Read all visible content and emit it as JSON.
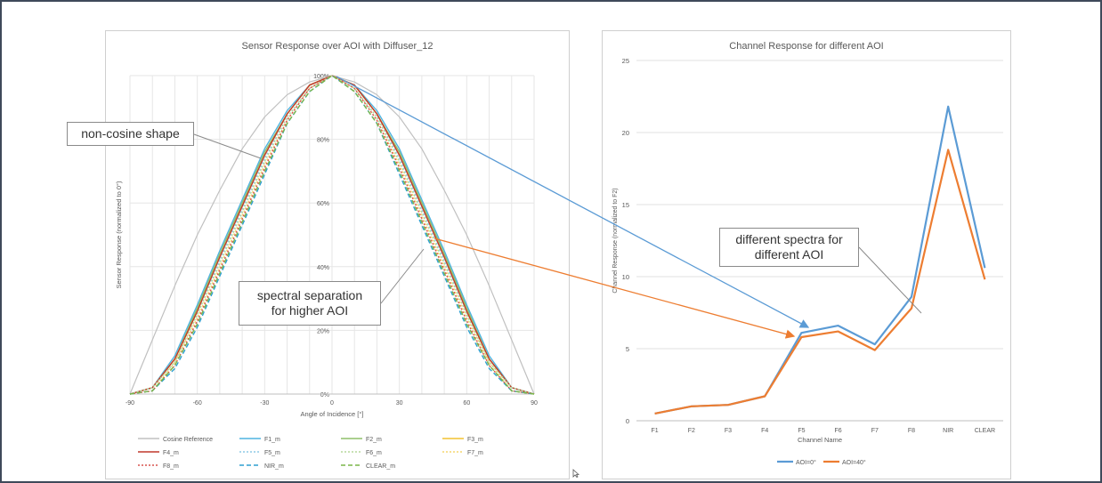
{
  "left_chart": {
    "title": "Sensor Response over AOI with Diffuser_12",
    "xlabel": "Angle of Incidence [°]",
    "ylabel": "Sensor Response (normalized to 0°)",
    "x_ticks": [
      "-90",
      "-60",
      "-30",
      "0",
      "30",
      "60",
      "90"
    ],
    "y_ticks": [
      "0%",
      "20%",
      "40%",
      "60%",
      "80%",
      "100%"
    ],
    "legend": [
      {
        "label": "Cosine Reference",
        "color": "#c0c0c0",
        "dash": "solid"
      },
      {
        "label": "F1_m",
        "color": "#4fb3e0",
        "dash": "solid"
      },
      {
        "label": "F2_m",
        "color": "#8fbf6a",
        "dash": "solid"
      },
      {
        "label": "F3_m",
        "color": "#f2c230",
        "dash": "solid"
      },
      {
        "label": "F4_m",
        "color": "#c0392b",
        "dash": "solid"
      },
      {
        "label": "F5_m",
        "color": "#8ecae6",
        "dash": "dotted"
      },
      {
        "label": "F6_m",
        "color": "#b5d99c",
        "dash": "dotted"
      },
      {
        "label": "F7_m",
        "color": "#f5d76e",
        "dash": "dotted"
      },
      {
        "label": "F8_m",
        "color": "#d9534f",
        "dash": "dotted"
      },
      {
        "label": "NIR_m",
        "color": "#2e9fd0",
        "dash": "dashed"
      },
      {
        "label": "CLEAR_m",
        "color": "#7ab648",
        "dash": "dashed"
      }
    ]
  },
  "right_chart": {
    "title": "Channel Response for different AOI",
    "xlabel": "Channel Name",
    "ylabel": "Channel Response (normalized to F2)",
    "y_ticks": [
      "0",
      "5",
      "10",
      "15",
      "20",
      "25"
    ],
    "legend": [
      {
        "label": "AOI=0°",
        "color": "#5b9bd5"
      },
      {
        "label": "AOI=40°",
        "color": "#ed7d31"
      }
    ]
  },
  "chart_data": [
    {
      "type": "line",
      "title": "Sensor Response over AOI with Diffuser_12",
      "xlabel": "Angle of Incidence [°]",
      "ylabel": "Sensor Response (normalized to 0°)",
      "xlim": [
        -90,
        90
      ],
      "ylim": [
        0,
        1
      ],
      "grid": true,
      "legend_position": "bottom",
      "x": [
        -90,
        -80,
        -70,
        -60,
        -50,
        -40,
        -30,
        -20,
        -10,
        0,
        10,
        20,
        30,
        40,
        50,
        60,
        70,
        80,
        90
      ],
      "series": [
        {
          "name": "Cosine Reference",
          "values": [
            0.0,
            0.17,
            0.34,
            0.5,
            0.64,
            0.77,
            0.87,
            0.94,
            0.98,
            1.0,
            0.98,
            0.94,
            0.87,
            0.77,
            0.64,
            0.5,
            0.34,
            0.17,
            0.0
          ]
        },
        {
          "name": "F1_m",
          "values": [
            0.0,
            0.02,
            0.12,
            0.28,
            0.45,
            0.61,
            0.77,
            0.89,
            0.97,
            1.0,
            0.97,
            0.89,
            0.77,
            0.61,
            0.45,
            0.28,
            0.12,
            0.02,
            0.0
          ]
        },
        {
          "name": "F2_m",
          "values": [
            0.0,
            0.02,
            0.11,
            0.27,
            0.44,
            0.6,
            0.76,
            0.88,
            0.97,
            1.0,
            0.97,
            0.88,
            0.76,
            0.6,
            0.44,
            0.27,
            0.11,
            0.02,
            0.0
          ]
        },
        {
          "name": "F3_m",
          "values": [
            0.0,
            0.02,
            0.11,
            0.26,
            0.43,
            0.59,
            0.75,
            0.88,
            0.97,
            1.0,
            0.97,
            0.88,
            0.75,
            0.59,
            0.43,
            0.26,
            0.11,
            0.02,
            0.0
          ]
        },
        {
          "name": "F4_m",
          "values": [
            0.0,
            0.02,
            0.11,
            0.26,
            0.43,
            0.59,
            0.75,
            0.88,
            0.97,
            1.0,
            0.97,
            0.88,
            0.75,
            0.59,
            0.43,
            0.26,
            0.11,
            0.02,
            0.0
          ]
        },
        {
          "name": "F5_m",
          "values": [
            0.0,
            0.02,
            0.1,
            0.25,
            0.42,
            0.58,
            0.74,
            0.87,
            0.96,
            1.0,
            0.96,
            0.87,
            0.74,
            0.58,
            0.42,
            0.25,
            0.1,
            0.02,
            0.0
          ]
        },
        {
          "name": "F6_m",
          "values": [
            0.0,
            0.02,
            0.1,
            0.25,
            0.41,
            0.57,
            0.73,
            0.87,
            0.96,
            1.0,
            0.96,
            0.87,
            0.73,
            0.57,
            0.41,
            0.25,
            0.1,
            0.02,
            0.0
          ]
        },
        {
          "name": "F7_m",
          "values": [
            0.0,
            0.01,
            0.1,
            0.24,
            0.4,
            0.56,
            0.72,
            0.86,
            0.96,
            1.0,
            0.96,
            0.86,
            0.72,
            0.56,
            0.4,
            0.24,
            0.1,
            0.01,
            0.0
          ]
        },
        {
          "name": "F8_m",
          "values": [
            0.0,
            0.01,
            0.09,
            0.23,
            0.39,
            0.55,
            0.71,
            0.86,
            0.96,
            1.0,
            0.96,
            0.86,
            0.71,
            0.55,
            0.39,
            0.23,
            0.09,
            0.01,
            0.0
          ]
        },
        {
          "name": "NIR_m",
          "values": [
            0.0,
            0.01,
            0.08,
            0.21,
            0.37,
            0.53,
            0.69,
            0.85,
            0.95,
            1.0,
            0.95,
            0.85,
            0.69,
            0.53,
            0.37,
            0.21,
            0.08,
            0.01,
            0.0
          ]
        },
        {
          "name": "CLEAR_m",
          "values": [
            0.0,
            0.01,
            0.09,
            0.22,
            0.38,
            0.54,
            0.7,
            0.85,
            0.95,
            1.0,
            0.95,
            0.85,
            0.7,
            0.54,
            0.38,
            0.22,
            0.09,
            0.01,
            0.0
          ]
        }
      ]
    },
    {
      "type": "line",
      "title": "Channel Response for different AOI",
      "xlabel": "Channel Name",
      "ylabel": "Channel Response (normalized to F2)",
      "ylim": [
        0,
        25
      ],
      "grid": true,
      "legend_position": "bottom",
      "categories": [
        "F1",
        "F2",
        "F3",
        "F4",
        "F5",
        "F6",
        "F7",
        "F8",
        "NIR",
        "CLEAR"
      ],
      "series": [
        {
          "name": "AOI=0°",
          "values": [
            0.5,
            1.0,
            1.1,
            1.7,
            6.1,
            6.6,
            5.3,
            8.6,
            21.8,
            10.6
          ]
        },
        {
          "name": "AOI=40°",
          "values": [
            0.5,
            1.0,
            1.1,
            1.7,
            5.8,
            6.2,
            4.9,
            7.8,
            18.8,
            9.8
          ]
        }
      ]
    }
  ],
  "annotations": {
    "non_cosine": "non-cosine shape",
    "spectral_line1": "spectral separation",
    "spectral_line2": "for higher AOI",
    "spectra_line1": "different spectra for",
    "spectra_line2": "different AOI"
  }
}
